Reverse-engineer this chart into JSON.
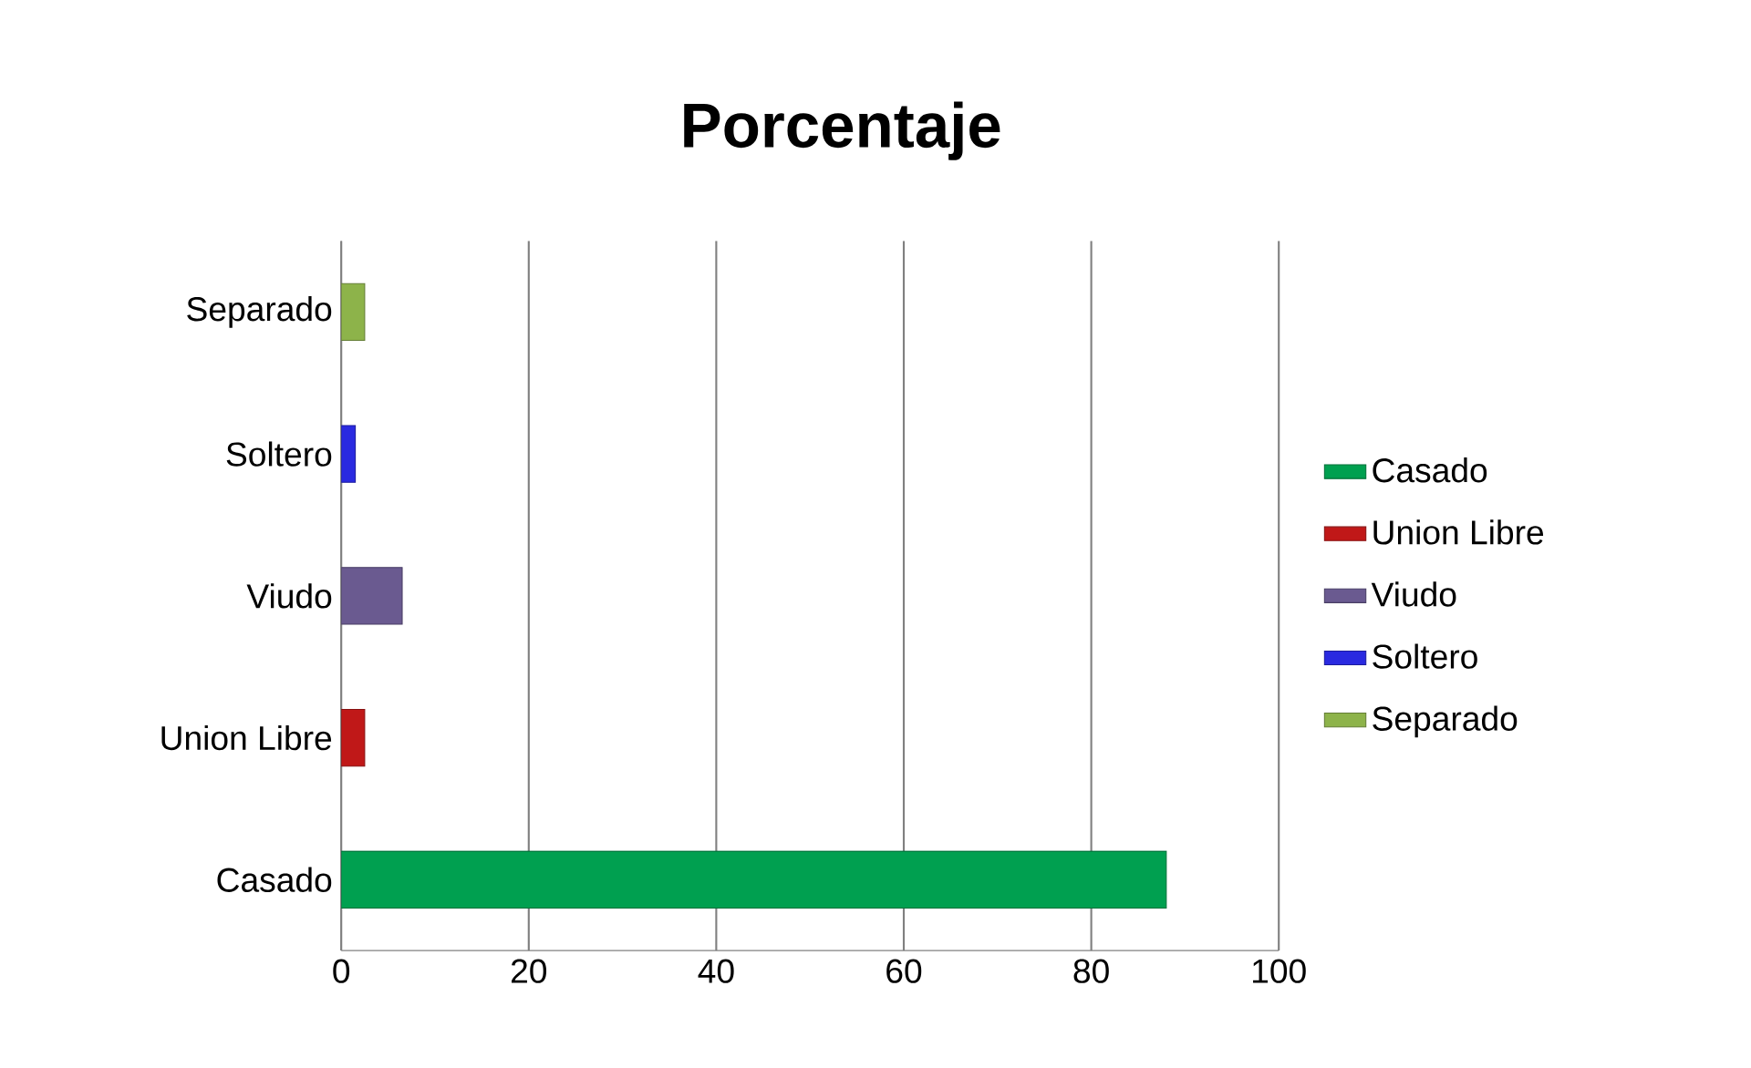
{
  "chart_data": {
    "type": "bar",
    "orientation": "horizontal",
    "title": "Porcentaje",
    "categories": [
      "Separado",
      "Soltero",
      "Viudo",
      "Union Libre",
      "Casado"
    ],
    "series": [
      {
        "name": "Casado",
        "color": "#00a050",
        "values": [
          null,
          null,
          null,
          null,
          88
        ]
      },
      {
        "name": "Union Libre",
        "color": "#c01818",
        "values": [
          null,
          null,
          null,
          2.5,
          null
        ]
      },
      {
        "name": "Viudo",
        "color": "#6a5a90",
        "values": [
          null,
          null,
          6.5,
          null,
          null
        ]
      },
      {
        "name": "Soltero",
        "color": "#2a2ae0",
        "values": [
          null,
          1.5,
          null,
          null,
          null
        ]
      },
      {
        "name": "Separado",
        "color": "#8db34a",
        "values": [
          2.5,
          null,
          null,
          null,
          null
        ]
      }
    ],
    "xlim": [
      0,
      100
    ],
    "xticks": [
      0,
      20,
      40,
      60,
      80,
      100
    ],
    "grid": "x",
    "legend": "right"
  }
}
